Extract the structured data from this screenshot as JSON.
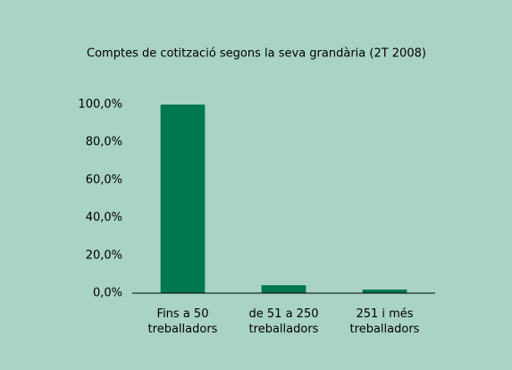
{
  "chart_data": {
    "type": "bar",
    "title": "Comptes de cotització segons la seva grandària (2T 2008)",
    "categories": [
      "Fins a 50 treballadors",
      "de 51 a 250 treballadors",
      "251 i més treballadors"
    ],
    "values": [
      100,
      4.2,
      1.9
    ],
    "color": "#00784d",
    "ylim": [
      0,
      100
    ],
    "yticks": [
      {
        "value": 0,
        "label": "0,0%"
      },
      {
        "value": 20,
        "label": "20,0%"
      },
      {
        "value": 40,
        "label": "40,0%"
      },
      {
        "value": 60,
        "label": "60,0%"
      },
      {
        "value": 80,
        "label": "80,0%"
      },
      {
        "value": 100,
        "label": "100,0%"
      }
    ],
    "grid": false
  }
}
